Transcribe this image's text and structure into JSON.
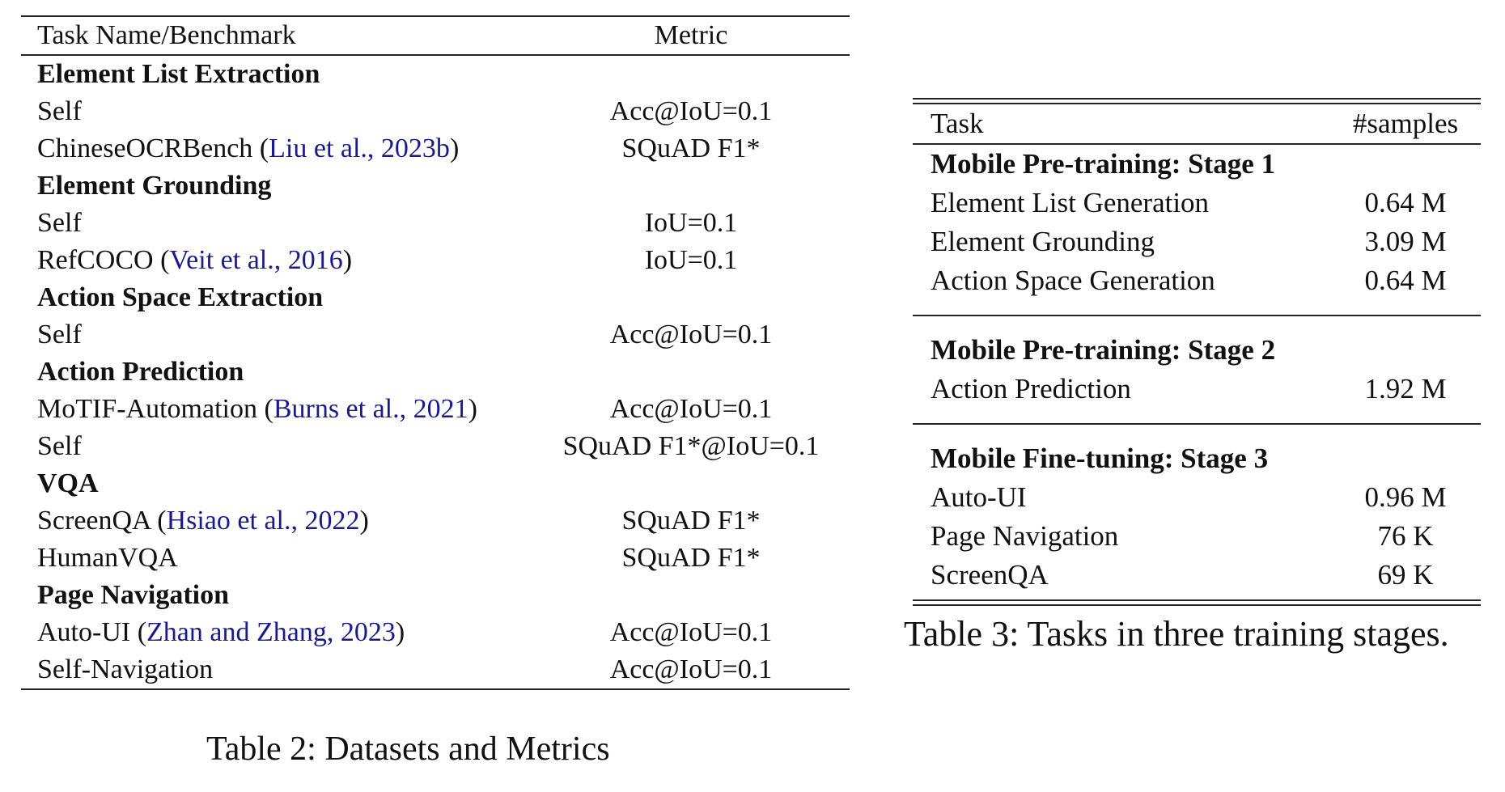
{
  "table2": {
    "header": {
      "task": "Task Name/Benchmark",
      "metric": "Metric"
    },
    "rows": [
      {
        "type": "section",
        "task": "Element List Extraction",
        "metric": ""
      },
      {
        "type": "item",
        "task": "Self",
        "citation": "",
        "metric": "Acc@IoU=0.1"
      },
      {
        "type": "item",
        "task": "ChineseOCRBench",
        "citation": "Liu et al., 2023b",
        "metric": "SQuAD F1*"
      },
      {
        "type": "section",
        "task": "Element Grounding",
        "metric": ""
      },
      {
        "type": "item",
        "task": "Self",
        "citation": "",
        "metric": "IoU=0.1"
      },
      {
        "type": "item",
        "task": "RefCOCO",
        "citation": "Veit et al., 2016",
        "metric": "IoU=0.1"
      },
      {
        "type": "section",
        "task": "Action Space Extraction",
        "metric": ""
      },
      {
        "type": "item",
        "task": "Self",
        "citation": "",
        "metric": "Acc@IoU=0.1"
      },
      {
        "type": "section",
        "task": "Action Prediction",
        "metric": ""
      },
      {
        "type": "item",
        "task": "MoTIF-Automation",
        "citation": "Burns et al., 2021",
        "metric": "Acc@IoU=0.1"
      },
      {
        "type": "item",
        "task": "Self",
        "citation": "",
        "metric": "SQuAD F1*@IoU=0.1"
      },
      {
        "type": "section",
        "task": "VQA",
        "metric": ""
      },
      {
        "type": "item",
        "task": "ScreenQA",
        "citation": "Hsiao et al., 2022",
        "metric": "SQuAD F1*"
      },
      {
        "type": "item",
        "task": "HumanVQA",
        "citation": "",
        "metric": "SQuAD F1*"
      },
      {
        "type": "section",
        "task": "Page Navigation",
        "metric": ""
      },
      {
        "type": "item",
        "task": "Auto-UI",
        "citation": "Zhan and Zhang, 2023",
        "metric": "Acc@IoU=0.1"
      },
      {
        "type": "item",
        "task": "Self-Navigation",
        "citation": "",
        "metric": "Acc@IoU=0.1"
      }
    ],
    "caption": "Table 2: Datasets and Metrics"
  },
  "table3": {
    "header": {
      "task": "Task",
      "samples": "#samples"
    },
    "groups": [
      {
        "title": "Mobile Pre-training: Stage 1",
        "rows": [
          {
            "task": "Element List Generation",
            "samples": "0.64 M"
          },
          {
            "task": "Element Grounding",
            "samples": "3.09 M"
          },
          {
            "task": "Action Space Generation",
            "samples": "0.64 M"
          }
        ]
      },
      {
        "title": "Mobile Pre-training: Stage 2",
        "rows": [
          {
            "task": "Action Prediction",
            "samples": "1.92 M"
          }
        ]
      },
      {
        "title": "Mobile Fine-tuning: Stage 3",
        "rows": [
          {
            "task": "Auto-UI",
            "samples": "0.96 M"
          },
          {
            "task": "Page Navigation",
            "samples": "76 K"
          },
          {
            "task": "ScreenQA",
            "samples": "69 K"
          }
        ]
      }
    ],
    "caption": "Table 3: Tasks in three training stages."
  },
  "colors": {
    "text": "#111111",
    "citation": "#1a1a8c",
    "rule": "#222222"
  }
}
